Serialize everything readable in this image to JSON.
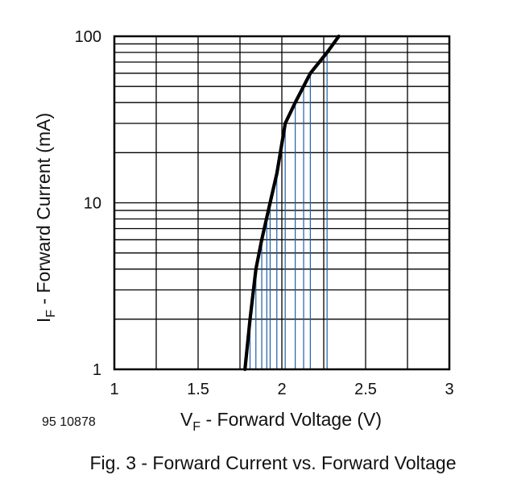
{
  "chart_data": {
    "type": "line",
    "y_scale": "log",
    "xlim": [
      1,
      3
    ],
    "ylim": [
      1,
      100
    ],
    "x_ticks": [
      "1",
      "1.5",
      "2",
      "2.5",
      "3"
    ],
    "y_ticks": [
      "1",
      "10",
      "100"
    ],
    "xlabel": {
      "main": "V",
      "sub": "F",
      "rest": " - Forward Voltage (V)"
    },
    "ylabel": {
      "main": "I",
      "sub": "F",
      "rest": " - Forward Current (mA)"
    },
    "grid": true,
    "series": [
      {
        "color": "#000000",
        "x": [
          1.78,
          1.81,
          1.845,
          1.88,
          1.93,
          1.97,
          2.02,
          2.08,
          2.17,
          2.27,
          2.34
        ],
        "y": [
          1,
          2,
          4,
          6,
          10,
          15,
          30,
          40,
          60,
          80,
          100
        ]
      }
    ],
    "drop_lines": {
      "color": "#1f5fa8",
      "points": [
        [
          1.81,
          2
        ],
        [
          1.845,
          4
        ],
        [
          1.88,
          6
        ],
        [
          1.91,
          8
        ],
        [
          1.93,
          10
        ],
        [
          1.97,
          15
        ],
        [
          2.02,
          30
        ],
        [
          2.08,
          40
        ],
        [
          2.13,
          50
        ],
        [
          2.17,
          60
        ],
        [
          2.27,
          80
        ]
      ]
    }
  },
  "doc_number": "95 10878",
  "caption": "Fig. 3 - Forward Current vs. Forward Voltage"
}
